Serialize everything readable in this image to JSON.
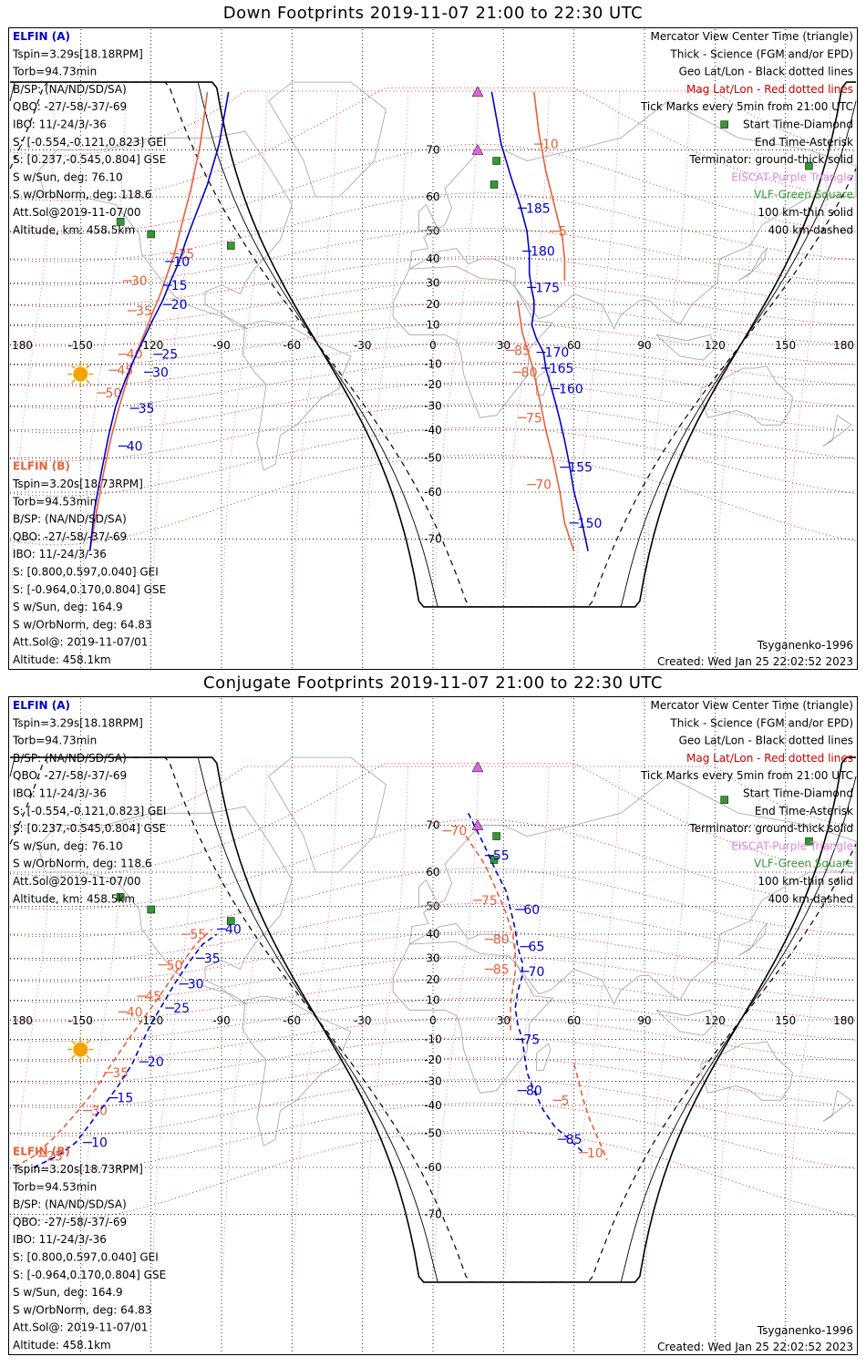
{
  "panels": [
    {
      "title": "Down Footprints 2019-11-07 21:00 to 22:30 UTC",
      "elfin_a": [
        "ELFIN (A)",
        "Tspin=3.29s[18.18RPM]",
        "Torb=94.73min",
        "B/SP: (NA/ND/SD/SA)",
        "QBO: -27/-58/-37/-69",
        "IBO: 11/-24/3/-36",
        "S: [-0.554,-0.121,0.823] GEI",
        "S: [0.237,-0.545,0.804] GSE",
        "S w/Sun, deg: 76.10",
        "S w/OrbNorm, deg: 118.6",
        "Att.Sol@2019-11-07/00",
        "Altitude, km: 458.5km"
      ],
      "elfin_b": [
        "ELFIN (B)",
        "Tspin=3.20s[18.73RPM]",
        "Torb=94.53min",
        "B/SP: (NA/ND/SD/SA)",
        "QBO: -27/-58/-37/-69",
        "IBO: 11/-24/3/-36",
        "S: [0.800,0.597,0.040] GEI",
        "S: [-0.964,0.170,0.804] GSE",
        "S w/Sun, deg: 164.9",
        "S w/OrbNorm, deg: 64.83",
        "Att.Sol@: 2019-11-07/01",
        "Altitude: 458.1km"
      ],
      "legend": [
        "Mercator View Center Time (triangle)",
        "Thick - Science (FGM and/or EPD)",
        "Geo Lat/Lon - Black dotted lines",
        "Mag Lat/Lon - Red dotted lines",
        "Tick Marks every 5min from 21:00 UTC",
        "Start Time-Diamond",
        "End Time-Asterisk",
        "Terminator: ground-thick solid",
        "EISCAT-Purple Triangle",
        "VLF-Green Square",
        "100 km-thin solid",
        "400 km-dashed"
      ],
      "model": "Tsyganenko-1996",
      "created": "Created: Wed Jan 25 22:02:52 2023",
      "tracks": [
        {
          "color": "#e8603a",
          "pts": [
            [
              -96,
              78
            ],
            [
              -99,
              71
            ],
            [
              -103,
              62
            ],
            [
              -107,
              52
            ],
            [
              -110,
              42
            ],
            [
              -113,
              34
            ],
            [
              -116,
              25
            ],
            [
              -119,
              17
            ],
            [
              -122,
              8
            ],
            [
              -125,
              -1
            ],
            [
              -128,
              -10
            ],
            [
              -131,
              -21
            ],
            [
              -134,
              -32
            ],
            [
              -137,
              -43
            ],
            [
              -140,
              -54
            ],
            [
              -143,
              -64
            ],
            [
              -146,
              -72
            ]
          ],
          "ticks": [
            {
              "t": "25",
              "lon": -110,
              "lat": 42
            },
            {
              "t": "30",
              "lon": -130,
              "lat": 31
            },
            {
              "t": "35",
              "lon": -128,
              "lat": 17
            },
            {
              "t": "40",
              "lon": -132,
              "lat": -5
            },
            {
              "t": "45",
              "lon": -136,
              "lat": -13
            },
            {
              "t": "50",
              "lon": -141,
              "lat": -24
            }
          ]
        },
        {
          "color": "#0000cc",
          "pts": [
            [
              -87,
              78
            ],
            [
              -91,
              71
            ],
            [
              -96,
              63
            ],
            [
              -101,
              55
            ],
            [
              -105,
              47
            ],
            [
              -108,
              39
            ],
            [
              -112,
              30
            ],
            [
              -115,
              22
            ],
            [
              -119,
              13
            ],
            [
              -123,
              3
            ],
            [
              -127,
              -7
            ],
            [
              -131,
              -18
            ],
            [
              -135,
              -30
            ],
            [
              -138,
              -42
            ],
            [
              -141,
              -54
            ],
            [
              -144,
              -64
            ],
            [
              -146,
              -72
            ]
          ],
          "ticks": [
            {
              "t": "10",
              "lon": -112,
              "lat": 39
            },
            {
              "t": "15",
              "lon": -113,
              "lat": 29
            },
            {
              "t": "20",
              "lon": -113,
              "lat": 20
            },
            {
              "t": "25",
              "lon": -117,
              "lat": -5
            },
            {
              "t": "30",
              "lon": -121,
              "lat": -14
            },
            {
              "t": "35",
              "lon": -127,
              "lat": -31
            },
            {
              "t": "40",
              "lon": -132,
              "lat": -46
            }
          ]
        },
        {
          "color": "#0000cc",
          "pts": [
            [
              25,
              78
            ],
            [
              29,
              71
            ],
            [
              33,
              65
            ],
            [
              37,
              58
            ],
            [
              40,
              50
            ],
            [
              41,
              42
            ],
            [
              41,
              34
            ],
            [
              42,
              27
            ],
            [
              43,
              22
            ],
            [
              43,
              17
            ],
            [
              42,
              10
            ],
            [
              44,
              3
            ],
            [
              47,
              -4
            ],
            [
              48,
              -12
            ],
            [
              50,
              -20
            ],
            [
              52,
              -28
            ],
            [
              54,
              -36
            ],
            [
              56,
              -44
            ],
            [
              58,
              -52
            ],
            [
              60,
              -60
            ],
            [
              63,
              -66
            ],
            [
              66,
              -72
            ]
          ],
          "ticks": [
            {
              "t": "185",
              "lon": 38,
              "lat": 57
            },
            {
              "t": "180",
              "lon": 40,
              "lat": 43
            },
            {
              "t": "175",
              "lon": 42,
              "lat": 28
            },
            {
              "t": "170",
              "lon": 46,
              "lat": -4
            },
            {
              "t": "165",
              "lon": 48,
              "lat": -12
            },
            {
              "t": "160",
              "lon": 52,
              "lat": -22
            },
            {
              "t": "155",
              "lon": 56,
              "lat": -53
            },
            {
              "t": "150",
              "lon": 60,
              "lat": -67
            }
          ]
        },
        {
          "color": "#e8603a",
          "pts": [
            [
              43,
              78
            ],
            [
              45,
              73
            ],
            [
              48,
              66
            ],
            [
              52,
              57
            ],
            [
              55,
              48
            ],
            [
              56,
              40
            ],
            [
              56,
              35
            ],
            [
              56,
              33
            ],
            [
              56,
              31
            ]
          ],
          "ticks": [
            {
              "t": "10",
              "lon": 45,
              "lat": 71
            },
            {
              "t": "5",
              "lon": 52,
              "lat": 50
            }
          ]
        },
        {
          "color": "#e8603a",
          "pts": [
            [
              36,
              22
            ],
            [
              37,
              14
            ],
            [
              38,
              6
            ],
            [
              40,
              -2
            ],
            [
              42,
              -10
            ],
            [
              44,
              -20
            ],
            [
              46,
              -30
            ],
            [
              48,
              -40
            ],
            [
              51,
              -50
            ],
            [
              54,
              -60
            ],
            [
              56,
              -67
            ],
            [
              60,
              -72
            ]
          ],
          "ticks": [
            {
              "t": "85",
              "lon": 33,
              "lat": -3
            },
            {
              "t": "80",
              "lon": 36,
              "lat": -14
            },
            {
              "t": "75",
              "lon": 38,
              "lat": -35
            },
            {
              "t": "70",
              "lon": 42,
              "lat": -58
            }
          ]
        }
      ]
    },
    {
      "title": "Conjugate Footprints 2019-11-07 21:00 to 22:30 UTC",
      "elfin_a": [
        "ELFIN (A)",
        "Tspin=3.29s[18.18RPM]",
        "Torb=94.73min",
        "B/SP: (NA/ND/SD/SA)",
        "QBO: -27/-58/-37/-69",
        "IBO: 11/-24/3/-36",
        "S: [-0.554,-0.121,0.823] GEI",
        "S: [0.237,-0.545,0.804] GSE",
        "S w/Sun, deg: 76.10",
        "S w/OrbNorm, deg: 118.6",
        "Att.Sol@2019-11-07/00",
        "Altitude, km: 458.5km"
      ],
      "elfin_b": [
        "ELFIN (B)",
        "Tspin=3.20s[18.73RPM]",
        "Torb=94.53min",
        "B/SP: (NA/ND/SD/SA)",
        "QBO: -27/-58/-37/-69",
        "IBO: 11/-24/3/-36",
        "S: [0.800,0.597,0.040] GEI",
        "S: [-0.964,0.170,0.804] GSE",
        "S w/Sun, deg: 164.9",
        "S w/OrbNorm, deg: 64.83",
        "Att.Sol@: 2019-11-07/01",
        "Altitude: 458.1km"
      ],
      "legend": [
        "Mercator View Center Time (triangle)",
        "Thick - Science (FGM and/or EPD)",
        "Geo Lat/Lon - Black dotted lines",
        "Mag Lat/Lon - Red dotted lines",
        "Tick Marks every 5min from 21:00 UTC",
        "Start Time-Diamond",
        "End Time-Asterisk",
        "Terminator: ground-thick solid",
        "EISCAT-Purple Triangle",
        "VLF-Green Square",
        "100 km-thin solid",
        "400 km-dashed"
      ],
      "model": "Tsyganenko-1996",
      "created": "Created: Wed Jan 25 22:02:52 2023",
      "tracks": [
        {
          "color": "#e8603a",
          "pts": [
            [
              -178,
              -60
            ],
            [
              -170,
              -57
            ],
            [
              -162,
              -52
            ],
            [
              -156,
              -47
            ],
            [
              -150,
              -41
            ],
            [
              -144,
              -34
            ],
            [
              -138,
              -24
            ],
            [
              -132,
              -14
            ],
            [
              -126,
              -4
            ],
            [
              -120,
              6
            ],
            [
              -114,
              16
            ],
            [
              -108,
              26
            ],
            [
              -101,
              36
            ],
            [
              -94,
              42
            ]
          ],
          "ticks": [
            {
              "t": "25",
              "lon": -166,
              "lat": -57
            },
            {
              "t": "30",
              "lon": -147,
              "lat": -42
            },
            {
              "t": "35",
              "lon": -138,
              "lat": -26
            },
            {
              "t": "40",
              "lon": -132,
              "lat": 4
            },
            {
              "t": "45",
              "lon": -124,
              "lat": 12
            },
            {
              "t": "50",
              "lon": -115,
              "lat": 27
            },
            {
              "t": "55",
              "lon": -105,
              "lat": 40
            }
          ]
        },
        {
          "color": "#0000cc",
          "pts": [
            [
              -170,
              -60
            ],
            [
              -160,
              -57
            ],
            [
              -152,
              -53
            ],
            [
              -146,
              -47
            ],
            [
              -140,
              -40
            ],
            [
              -134,
              -32
            ],
            [
              -128,
              -22
            ],
            [
              -124,
              -12
            ],
            [
              -120,
              -2
            ],
            [
              -115,
              8
            ],
            [
              -110,
              18
            ],
            [
              -104,
              28
            ],
            [
              -98,
              36
            ],
            [
              -92,
              40
            ]
          ],
          "ticks": [
            {
              "t": "10",
              "lon": -147,
              "lat": -53
            },
            {
              "t": "15",
              "lon": -136,
              "lat": -37
            },
            {
              "t": "20",
              "lon": -123,
              "lat": -21
            },
            {
              "t": "25",
              "lon": -112,
              "lat": 6
            },
            {
              "t": "30",
              "lon": -106,
              "lat": 18
            },
            {
              "t": "35",
              "lon": -99,
              "lat": 30
            },
            {
              "t": "40",
              "lon": -90,
              "lat": 42
            }
          ]
        },
        {
          "color": "#0000cc",
          "pts": [
            [
              15,
              72
            ],
            [
              22,
              66
            ],
            [
              27,
              60
            ],
            [
              31,
              55
            ],
            [
              33,
              49
            ],
            [
              35,
              42
            ],
            [
              36,
              35
            ],
            [
              38,
              28
            ],
            [
              38,
              22
            ],
            [
              36,
              14
            ],
            [
              35,
              6
            ],
            [
              36,
              -2
            ],
            [
              38,
              -10
            ],
            [
              39,
              -18
            ],
            [
              40,
              -26
            ],
            [
              43,
              -34
            ],
            [
              47,
              -42
            ],
            [
              52,
              -48
            ],
            [
              58,
              -52
            ],
            [
              64,
              -56
            ]
          ],
          "ticks": [
            {
              "t": "55",
              "lon": 24,
              "lat": 64
            },
            {
              "t": "60",
              "lon": 37,
              "lat": 49
            },
            {
              "t": "65",
              "lon": 39,
              "lat": 35
            },
            {
              "t": "70",
              "lon": 39,
              "lat": 24
            },
            {
              "t": "75",
              "lon": 37,
              "lat": -10
            },
            {
              "t": "80",
              "lon": 38,
              "lat": -34
            },
            {
              "t": "85",
              "lon": 55,
              "lat": -52
            }
          ]
        },
        {
          "color": "#e8603a",
          "pts": [
            [
              14,
              68
            ],
            [
              22,
              62
            ],
            [
              27,
              55
            ],
            [
              31,
              48
            ],
            [
              34,
              40
            ],
            [
              35,
              32
            ],
            [
              35,
              24
            ],
            [
              34,
              16
            ],
            [
              33,
              8
            ],
            [
              33,
              -2
            ],
            [
              33,
              -6
            ]
          ],
          "ticks": [
            {
              "t": "70",
              "lon": 6,
              "lat": 69
            },
            {
              "t": "75",
              "lon": 19,
              "lat": 52
            },
            {
              "t": "80",
              "lon": 24,
              "lat": 38
            },
            {
              "t": "85",
              "lon": 24,
              "lat": 25
            }
          ]
        },
        {
          "color": "#e8603a",
          "pts": [
            [
              60,
              -22
            ],
            [
              62,
              -30
            ],
            [
              64,
              -38
            ],
            [
              67,
              -46
            ],
            [
              71,
              -53
            ],
            [
              74,
              -58
            ]
          ],
          "ticks": [
            {
              "t": "5",
              "lon": 53,
              "lat": -38
            },
            {
              "t": "10",
              "lon": 64,
              "lat": -56
            }
          ]
        }
      ]
    }
  ],
  "axis": {
    "lon_ticks": [
      "180",
      "-150",
      "-120",
      "-90",
      "-60",
      "-30",
      "0",
      "30",
      "60",
      "90",
      "120",
      "150",
      "180"
    ],
    "lat_ticks": [
      "70",
      "60",
      "50",
      "40",
      "30",
      "20",
      "10",
      "-10",
      "-20",
      "-30",
      "-40",
      "-50",
      "-60",
      "-70"
    ]
  },
  "colors": {
    "orange": "#e8603a",
    "blue": "#0000cc",
    "red": "#cc0000",
    "purple": "#cc66cc",
    "green": "#339933",
    "gray": "#a0a0a0"
  }
}
